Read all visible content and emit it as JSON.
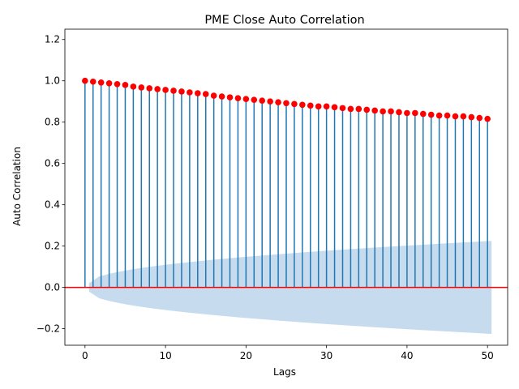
{
  "chart_data": {
    "type": "stem",
    "title": "PME Close Auto Correlation",
    "xlabel": "Lags",
    "ylabel": "Auto Correlation",
    "xlim": [
      -2.5,
      52.5
    ],
    "ylim": [
      -0.28,
      1.25
    ],
    "x_ticks": [
      0,
      10,
      20,
      30,
      40,
      50
    ],
    "x_tick_labels": [
      "0",
      "10",
      "20",
      "30",
      "40",
      "50"
    ],
    "y_ticks": [
      -0.2,
      0.0,
      0.2,
      0.4,
      0.6,
      0.8,
      1.0,
      1.2
    ],
    "y_tick_labels": [
      "−0.2",
      "0.0",
      "0.2",
      "0.4",
      "0.6",
      "0.8",
      "1.0",
      "1.2"
    ],
    "lags": [
      0,
      1,
      2,
      3,
      4,
      5,
      6,
      7,
      8,
      9,
      10,
      11,
      12,
      13,
      14,
      15,
      16,
      17,
      18,
      19,
      20,
      21,
      22,
      23,
      24,
      25,
      26,
      27,
      28,
      29,
      30,
      31,
      32,
      33,
      34,
      35,
      36,
      37,
      38,
      39,
      40,
      41,
      42,
      43,
      44,
      45,
      46,
      47,
      48,
      49,
      50
    ],
    "values": [
      1.0,
      0.996,
      0.992,
      0.988,
      0.984,
      0.98,
      0.972,
      0.968,
      0.964,
      0.96,
      0.956,
      0.952,
      0.948,
      0.944,
      0.94,
      0.936,
      0.928,
      0.924,
      0.92,
      0.916,
      0.912,
      0.908,
      0.904,
      0.9,
      0.896,
      0.892,
      0.888,
      0.884,
      0.88,
      0.876,
      0.876,
      0.872,
      0.868,
      0.864,
      0.864,
      0.86,
      0.856,
      0.852,
      0.852,
      0.848,
      0.844,
      0.844,
      0.84,
      0.836,
      0.832,
      0.832,
      0.828,
      0.828,
      0.824,
      0.82,
      0.816
    ],
    "confidence_band": {
      "x_start": 0.5,
      "x_end": 50.5,
      "lower_start": -0.02,
      "lower_end": -0.225,
      "upper_start": 0.02,
      "upper_end": 0.225
    },
    "zero_line": 0.0,
    "grid": false,
    "colors": {
      "stem": "#1f77b4",
      "marker": "#ff0000",
      "zero_line": "#ff0000",
      "band": "#c6dbed"
    }
  }
}
